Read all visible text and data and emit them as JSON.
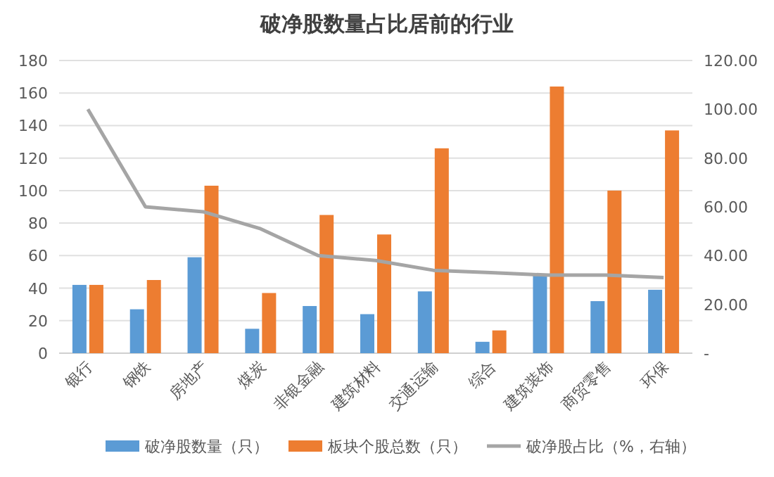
{
  "chart_data": {
    "type": "bar",
    "title": "破净股数量占比居前的行业",
    "categories": [
      "银行",
      "钢铁",
      "房地产",
      "煤炭",
      "非银金融",
      "建筑材料",
      "交通运输",
      "综合",
      "建筑装饰",
      "商贸零售",
      "环保"
    ],
    "series": [
      {
        "name": "破净股数量（只）",
        "color": "#5b9bd5",
        "values": [
          42,
          27,
          59,
          15,
          29,
          24,
          38,
          7,
          48,
          32,
          39
        ]
      },
      {
        "name": "板块个股总数（只）",
        "color": "#ed7d31",
        "values": [
          42,
          45,
          103,
          37,
          85,
          73,
          126,
          14,
          164,
          100,
          137
        ]
      },
      {
        "name": "破净股占比（%，右轴）",
        "color": "#a5a5a5",
        "type": "line",
        "axis": "y2",
        "values": [
          100,
          60,
          58,
          51,
          40,
          38,
          34,
          33,
          32,
          32,
          31
        ]
      }
    ],
    "ylim": [
      0,
      180
    ],
    "yticks": [
      0,
      20,
      40,
      60,
      80,
      100,
      120,
      140,
      160,
      180
    ],
    "y2lim": [
      0,
      120
    ],
    "y2ticks": [
      {
        "value": 0,
        "label": "-"
      },
      {
        "value": 20,
        "label": "20.00"
      },
      {
        "value": 40,
        "label": "40.00"
      },
      {
        "value": 60,
        "label": "60.00"
      },
      {
        "value": 80,
        "label": "80.00"
      },
      {
        "value": 100,
        "label": "100.00"
      },
      {
        "value": 120,
        "label": "120.00"
      }
    ],
    "grid": "y",
    "legend": "bottom",
    "marker": "none",
    "line_style": "solid"
  }
}
